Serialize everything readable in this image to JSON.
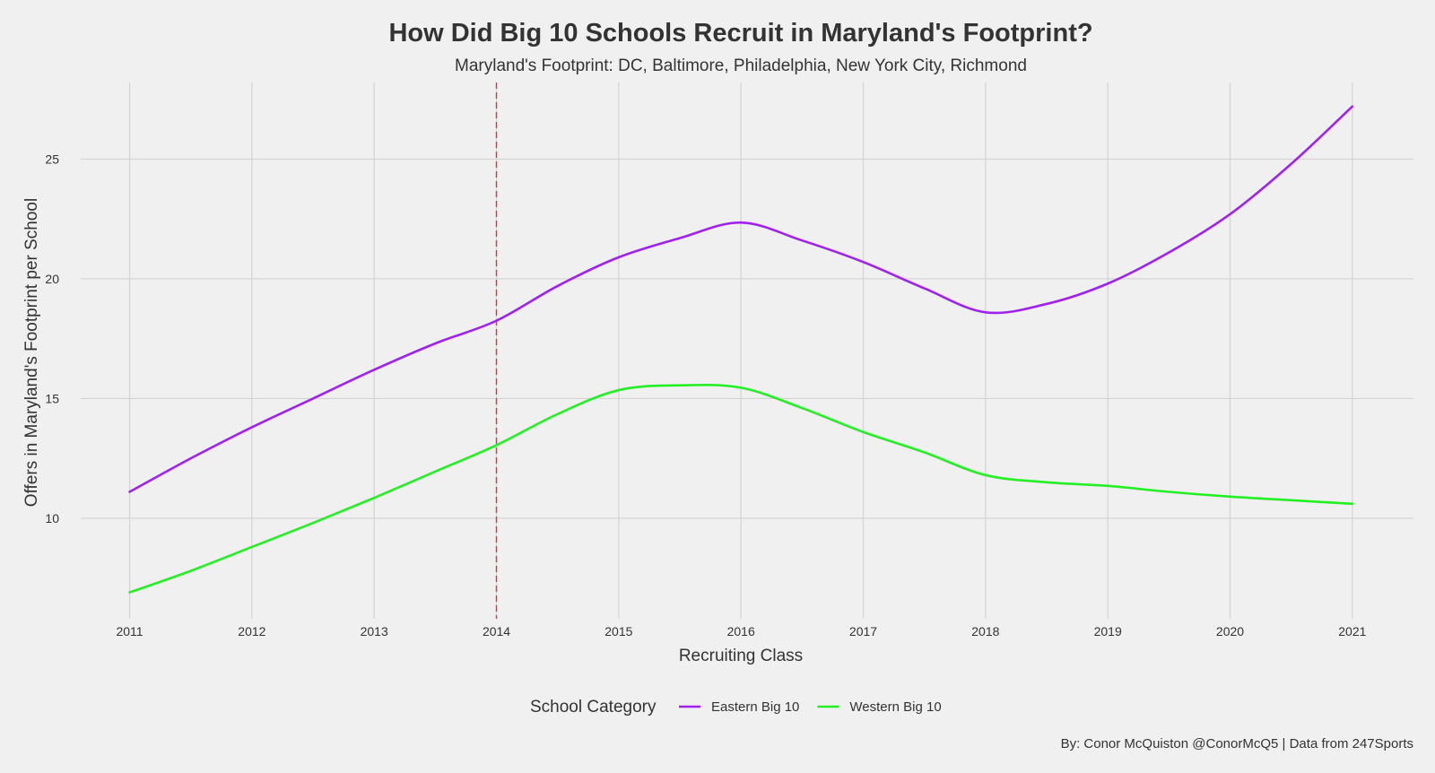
{
  "chart_data": {
    "type": "line",
    "title": "How Did Big 10 Schools Recruit in Maryland's Footprint?",
    "subtitle": "Maryland's Footprint: DC, Baltimore, Philadelphia, New York City, Richmond",
    "xlabel": "Recruiting Class",
    "ylabel": "Offers in Maryland's Footprint per School",
    "caption": "By: Conor McQuiston @ConorMcQ5 | Data from 247Sports",
    "x_ticks": [
      2011,
      2012,
      2013,
      2014,
      2015,
      2016,
      2017,
      2018,
      2019,
      2020,
      2021
    ],
    "y_ticks": [
      10,
      15,
      20,
      25
    ],
    "xlim": [
      2010.6,
      2021.5
    ],
    "ylim": [
      5.8,
      28.2
    ],
    "grid": true,
    "reference_line": {
      "x": 2014,
      "style": "dashed",
      "color": "#e8302f"
    },
    "legend": {
      "title": "School Category",
      "position": "bottom"
    },
    "series": [
      {
        "name": "Eastern Big 10",
        "color": "#a020f0",
        "x": [
          2011,
          2011.5,
          2012,
          2012.5,
          2013,
          2013.5,
          2014,
          2014.5,
          2015,
          2015.5,
          2016,
          2016.5,
          2017,
          2017.5,
          2018,
          2018.5,
          2019,
          2019.5,
          2020,
          2020.5,
          2021
        ],
        "y": [
          11.1,
          12.5,
          13.8,
          15.0,
          16.2,
          17.3,
          18.25,
          19.7,
          20.9,
          21.7,
          22.35,
          21.6,
          20.7,
          19.6,
          18.6,
          18.95,
          19.8,
          21.1,
          22.7,
          24.8,
          27.2
        ]
      },
      {
        "name": "Western Big 10",
        "color": "#22f022",
        "x": [
          2011,
          2011.5,
          2012,
          2012.5,
          2013,
          2013.5,
          2014,
          2014.5,
          2015,
          2015.5,
          2016,
          2016.5,
          2017,
          2017.5,
          2018,
          2018.5,
          2019,
          2019.5,
          2020,
          2020.5,
          2021
        ],
        "y": [
          6.9,
          7.8,
          8.8,
          9.8,
          10.85,
          11.95,
          13.05,
          14.35,
          15.35,
          15.55,
          15.45,
          14.6,
          13.6,
          12.75,
          11.8,
          11.5,
          11.35,
          11.1,
          10.9,
          10.75,
          10.6
        ]
      }
    ]
  }
}
